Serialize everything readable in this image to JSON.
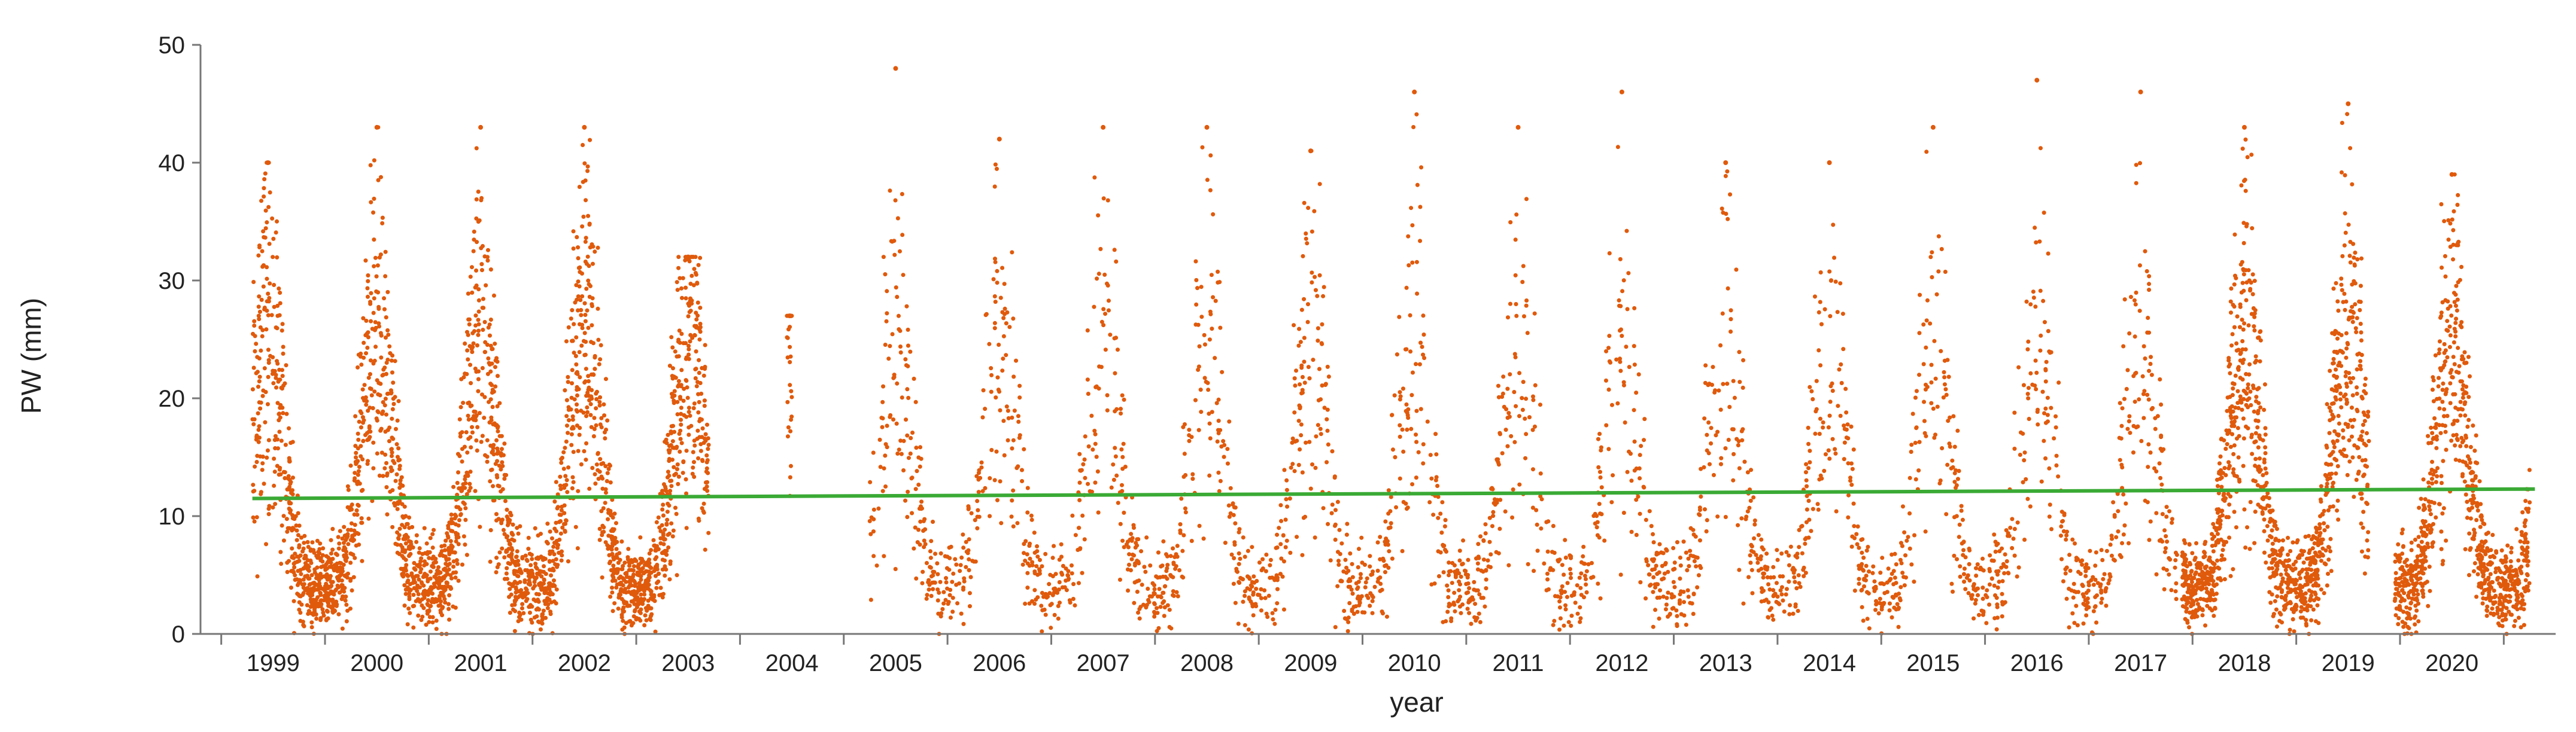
{
  "chart_data": {
    "type": "scatter",
    "title": "",
    "xlabel": "year",
    "ylabel": "PW (mm)",
    "ylim": [
      0,
      50
    ],
    "yticks": [
      "0",
      "10",
      "20",
      "30",
      "40",
      "50"
    ],
    "xlim": [
      1998.5,
      2021.2
    ],
    "years": [
      "1999",
      "2000",
      "2001",
      "2002",
      "2003",
      "2004",
      "2005",
      "2006",
      "2007",
      "2008",
      "2009",
      "2010",
      "2011",
      "2012",
      "2013",
      "2014",
      "2015",
      "2016",
      "2017",
      "2018",
      "2019",
      "2020"
    ],
    "grid": false,
    "legend": "none",
    "series": [
      {
        "mark": "points",
        "color": "#e05a0c",
        "description_values": "daily precipitable water, seasonal cycle",
        "segments": [
          {
            "start": 1999.0,
            "end": 1999.55
          },
          {
            "start": 1999.55,
            "end": 2003.4
          },
          {
            "start": 2004.15,
            "end": 2004.2
          },
          {
            "start": 2004.95,
            "end": 2017.55
          },
          {
            "start": 2017.6,
            "end": 2019.4
          },
          {
            "start": 2019.65,
            "end": 2020.95
          }
        ],
        "annual_peaks": [
          {
            "x": 1999.15,
            "y": 40
          },
          {
            "x": 2000.2,
            "y": 43
          },
          {
            "x": 2001.2,
            "y": 43
          },
          {
            "x": 2002.2,
            "y": 43
          },
          {
            "x": 2003.2,
            "y": 32
          },
          {
            "x": 2004.18,
            "y": 27
          },
          {
            "x": 2005.2,
            "y": 48
          },
          {
            "x": 2006.2,
            "y": 42
          },
          {
            "x": 2007.2,
            "y": 43
          },
          {
            "x": 2008.2,
            "y": 43
          },
          {
            "x": 2009.2,
            "y": 41
          },
          {
            "x": 2010.2,
            "y": 46
          },
          {
            "x": 2011.2,
            "y": 43
          },
          {
            "x": 2012.2,
            "y": 46
          },
          {
            "x": 2013.2,
            "y": 40
          },
          {
            "x": 2014.2,
            "y": 40
          },
          {
            "x": 2015.2,
            "y": 43
          },
          {
            "x": 2016.2,
            "y": 47
          },
          {
            "x": 2017.2,
            "y": 46
          },
          {
            "x": 2018.2,
            "y": 43
          },
          {
            "x": 2019.2,
            "y": 45
          },
          {
            "x": 2020.2,
            "y": 39
          }
        ],
        "winter_baseline": 4,
        "summer_mean": 25
      },
      {
        "mark": "trend-line",
        "color": "#3aaa35",
        "x": [
          1999.0,
          2021.0
        ],
        "y": [
          11.5,
          12.3
        ]
      }
    ]
  }
}
